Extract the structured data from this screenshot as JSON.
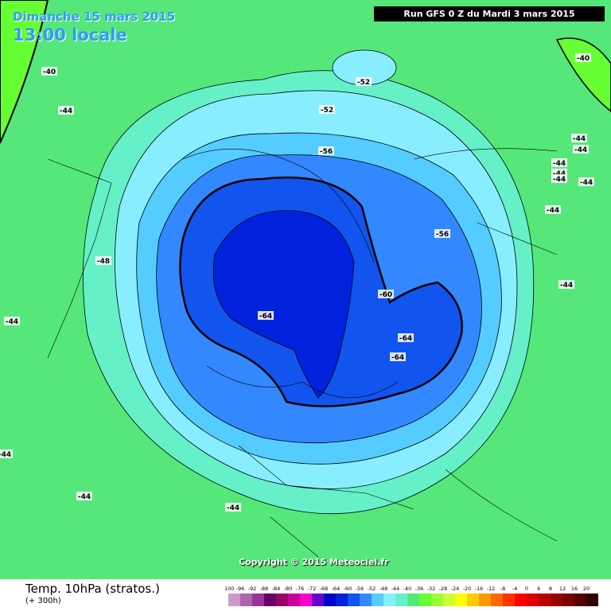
{
  "header": {
    "date": "Dimanche 15 mars 2015",
    "time": "13:00 locale",
    "run": "Run GFS 0 Z du Mardi 3 mars 2015"
  },
  "map": {
    "contour_labels": [
      -40,
      -44,
      -52,
      -52,
      -56,
      -40,
      -44,
      -44,
      -44,
      -44,
      -44,
      -44,
      -44,
      -44,
      -56,
      -48,
      -60,
      -64,
      -64,
      -64,
      -44,
      -44,
      -44,
      -44
    ],
    "copyright": "Copyright © 2015 Meteociel.fr"
  },
  "footer": {
    "title": "Temp. 10hPa (stratos.)",
    "subtitle": "(+ 300h)"
  },
  "scale": {
    "labels": [
      -100,
      -96,
      -92,
      -88,
      -84,
      -80,
      -76,
      -72,
      -68,
      -64,
      -60,
      -56,
      -52,
      -48,
      -44,
      -40,
      -36,
      -32,
      -28,
      -24,
      -20,
      -16,
      -12,
      -8,
      -4,
      0,
      4,
      8,
      12,
      16,
      20
    ],
    "colors": [
      "#cc99cc",
      "#aa66aa",
      "#993399",
      "#660066",
      "#990066",
      "#cc0099",
      "#ff00cc",
      "#6600cc",
      "#0000cc",
      "#0022dd",
      "#1155ee",
      "#3388ff",
      "#55ccff",
      "#88eeff",
      "#66f0c8",
      "#55e77a",
      "#66ff33",
      "#99ff33",
      "#ccff33",
      "#ffff00",
      "#ffcc00",
      "#ff9900",
      "#ff6600",
      "#ff3300",
      "#ff0000",
      "#dd0000",
      "#bb0000",
      "#990000",
      "#770000",
      "#550000",
      "#330000"
    ]
  }
}
